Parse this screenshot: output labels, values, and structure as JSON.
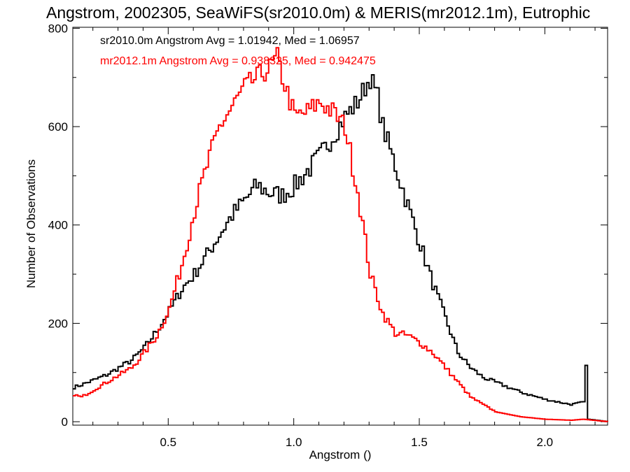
{
  "chart_data": {
    "type": "line",
    "step": true,
    "title": "Angstrom, 2002305, SeaWiFS(sr2010.0m) & MERIS(mr2012.1m), Eutrophic",
    "xlabel": "Angstrom ()",
    "ylabel": "Number of Observations",
    "xlim": [
      0.12,
      2.25
    ],
    "ylim": [
      0,
      800
    ],
    "xticks": [
      0.5,
      1.0,
      1.5,
      2.0
    ],
    "xtick_labels": [
      "0.5",
      "1.0",
      "1.5",
      "2.0"
    ],
    "yticks": [
      0,
      200,
      400,
      600,
      800
    ],
    "ytick_labels": [
      "0",
      "200",
      "400",
      "600",
      "800"
    ],
    "grid": false,
    "legend_position": "top-left",
    "series": [
      {
        "name": "sr2010.0m",
        "legend": "sr2010.0m Angstrom Avg = 1.01942, Med = 1.06957",
        "color": "#000000",
        "x": [
          0.12,
          0.15,
          0.2,
          0.25,
          0.3,
          0.35,
          0.4,
          0.45,
          0.5,
          0.55,
          0.6,
          0.65,
          0.7,
          0.75,
          0.8,
          0.85,
          0.9,
          0.95,
          1.0,
          1.05,
          1.1,
          1.15,
          1.2,
          1.25,
          1.28,
          1.3,
          1.33,
          1.35,
          1.4,
          1.45,
          1.5,
          1.55,
          1.6,
          1.65,
          1.7,
          1.75,
          1.8,
          1.9,
          2.0,
          2.1,
          2.15,
          2.16,
          2.17,
          2.25
        ],
        "values": [
          70,
          75,
          85,
          95,
          110,
          125,
          150,
          185,
          225,
          270,
          300,
          340,
          380,
          420,
          450,
          480,
          465,
          460,
          480,
          510,
          540,
          580,
          620,
          650,
          680,
          700,
          660,
          600,
          520,
          440,
          360,
          280,
          210,
          140,
          110,
          90,
          80,
          60,
          45,
          35,
          40,
          110,
          5,
          0
        ]
      },
      {
        "name": "mr2012.1m",
        "legend": "mr2012.1m Angstrom Avg = 0.938325, Med = 0.942475",
        "color": "#ff0000",
        "x": [
          0.12,
          0.15,
          0.2,
          0.25,
          0.3,
          0.35,
          0.4,
          0.45,
          0.5,
          0.55,
          0.6,
          0.65,
          0.7,
          0.75,
          0.8,
          0.85,
          0.9,
          0.93,
          0.95,
          1.0,
          1.05,
          1.1,
          1.15,
          1.2,
          1.25,
          1.3,
          1.35,
          1.4,
          1.45,
          1.5,
          1.55,
          1.6,
          1.65,
          1.7,
          1.75,
          1.8,
          1.9,
          2.0,
          2.1,
          2.15,
          2.25
        ],
        "values": [
          55,
          50,
          65,
          80,
          95,
          110,
          140,
          175,
          230,
          320,
          430,
          520,
          600,
          640,
          680,
          700,
          720,
          740,
          700,
          620,
          630,
          650,
          630,
          600,
          470,
          300,
          220,
          180,
          175,
          160,
          140,
          110,
          80,
          50,
          35,
          20,
          10,
          5,
          3,
          5,
          0
        ]
      }
    ]
  }
}
